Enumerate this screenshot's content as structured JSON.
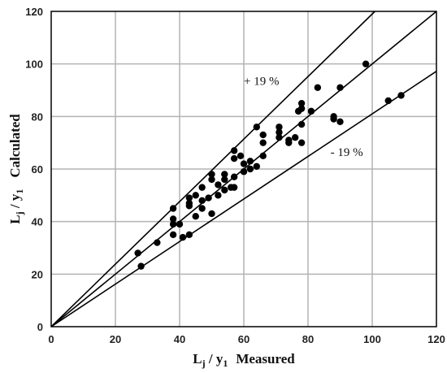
{
  "chart_data": {
    "type": "scatter",
    "title": "",
    "xlabel": {
      "main": "L",
      "sub1": "j",
      "sep": " / y",
      "sub2": "1",
      "rest": "Measured"
    },
    "ylabel": {
      "main": "L",
      "sub1": "j",
      "sep": " / y",
      "sub2": "1",
      "rest": "Calculated"
    },
    "xlim": [
      0,
      120
    ],
    "ylim": [
      0,
      120
    ],
    "x_ticks": [
      0,
      20,
      40,
      60,
      80,
      100,
      120
    ],
    "y_ticks": [
      0,
      20,
      40,
      60,
      80,
      100,
      120
    ],
    "grid": true,
    "reference_lines": [
      {
        "label": "+ 19 %",
        "slope": 1.19
      },
      {
        "label": "",
        "slope": 1.0
      },
      {
        "label": "- 19 %",
        "slope": 0.81
      }
    ],
    "annotations": [
      {
        "text": "+ 19 %",
        "x": 60,
        "y": 92
      },
      {
        "text": "- 19 %",
        "x": 87,
        "y": 65
      }
    ],
    "points": [
      [
        27,
        28
      ],
      [
        28,
        23
      ],
      [
        33,
        32
      ],
      [
        38,
        45
      ],
      [
        38,
        41
      ],
      [
        38,
        39
      ],
      [
        38,
        35
      ],
      [
        40,
        39
      ],
      [
        41,
        34
      ],
      [
        43,
        35
      ],
      [
        43,
        46
      ],
      [
        43,
        47
      ],
      [
        43,
        49
      ],
      [
        45,
        42
      ],
      [
        45,
        50
      ],
      [
        47,
        48
      ],
      [
        47,
        53
      ],
      [
        47,
        45
      ],
      [
        49,
        49
      ],
      [
        50,
        43
      ],
      [
        50,
        56
      ],
      [
        50,
        58
      ],
      [
        52,
        50
      ],
      [
        52,
        54
      ],
      [
        54,
        52
      ],
      [
        54,
        56
      ],
      [
        54,
        58
      ],
      [
        56,
        53
      ],
      [
        57,
        57
      ],
      [
        57,
        64
      ],
      [
        57,
        67
      ],
      [
        57,
        53
      ],
      [
        59,
        65
      ],
      [
        60,
        59
      ],
      [
        60,
        62
      ],
      [
        62,
        60
      ],
      [
        62,
        63
      ],
      [
        64,
        61
      ],
      [
        64,
        76
      ],
      [
        66,
        65
      ],
      [
        66,
        70
      ],
      [
        66,
        73
      ],
      [
        71,
        72
      ],
      [
        71,
        74
      ],
      [
        71,
        76
      ],
      [
        74,
        70
      ],
      [
        74,
        71
      ],
      [
        76,
        72
      ],
      [
        77,
        82
      ],
      [
        78,
        70
      ],
      [
        78,
        77
      ],
      [
        78,
        83
      ],
      [
        78,
        85
      ],
      [
        81,
        82
      ],
      [
        83,
        91
      ],
      [
        88,
        79
      ],
      [
        88,
        80
      ],
      [
        90,
        78
      ],
      [
        90,
        91
      ],
      [
        98,
        100
      ],
      [
        105,
        86
      ],
      [
        109,
        88
      ]
    ]
  }
}
